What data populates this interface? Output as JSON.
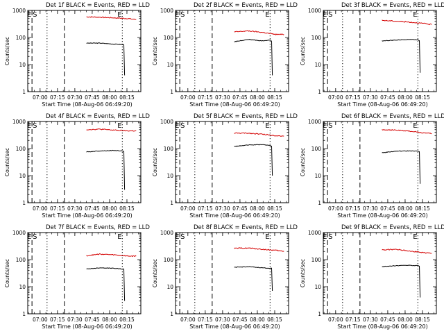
{
  "colors": {
    "events": "#000000",
    "lld": "#d40000",
    "axis": "#000000",
    "background": "#ffffff"
  },
  "common": {
    "ylabel": "Counts/sec",
    "xlabel": "Start Time (08-Aug-06 06:49:20)",
    "x_ticks": [
      "07:00",
      "07:15",
      "07:30",
      "07:45",
      "08:00",
      "08:15"
    ],
    "y_ticks": [
      "1",
      "10",
      "100",
      "1000"
    ],
    "markers": {
      "E_left": "E",
      "S_left": "S",
      "E_right": "E"
    }
  },
  "chart_data": [
    {
      "type": "line",
      "title": "Det 1f BLACK = Events, RED = LLD",
      "xlabel": "Start Time (08-Aug-06 06:49:20)",
      "ylabel": "Counts/sec",
      "ylim": [
        1,
        1000
      ],
      "yscale": "log",
      "x_range": [
        "06:49:20",
        "08:27:00"
      ],
      "dotted_lines": [
        "07:06",
        "08:11"
      ],
      "dashed_lines": [
        "06:53",
        "07:21"
      ],
      "series": [
        {
          "name": "LLD",
          "color": "red",
          "x": [
            "07:40",
            "07:52",
            "08:04",
            "08:16",
            "08:23"
          ],
          "values": [
            580,
            560,
            530,
            500,
            460
          ]
        },
        {
          "name": "Events",
          "color": "black",
          "x": [
            "07:40",
            "07:52",
            "08:04",
            "08:11",
            "08:13",
            "08:13"
          ],
          "values": [
            62,
            62,
            57,
            55,
            55,
            4
          ]
        }
      ]
    },
    {
      "type": "line",
      "title": "Det 2f BLACK = Events, RED = LLD",
      "xlabel": "Start Time (08-Aug-06 06:49:20)",
      "ylabel": "Counts/sec",
      "ylim": [
        1,
        1000
      ],
      "yscale": "log",
      "x_range": [
        "06:49:20",
        "08:27:00"
      ],
      "dotted_lines": [
        "07:06",
        "08:11"
      ],
      "dashed_lines": [
        "06:53",
        "07:21"
      ],
      "series": [
        {
          "name": "LLD",
          "color": "red",
          "x": [
            "07:40",
            "07:52",
            "08:04",
            "08:16",
            "08:23"
          ],
          "values": [
            160,
            175,
            155,
            130,
            130
          ]
        },
        {
          "name": "Events",
          "color": "black",
          "x": [
            "07:40",
            "07:52",
            "08:04",
            "08:11",
            "08:13",
            "08:13"
          ],
          "values": [
            70,
            85,
            75,
            80,
            70,
            4
          ]
        }
      ]
    },
    {
      "type": "line",
      "title": "Det 3f BLACK = Events, RED = LLD",
      "xlabel": "Start Time (08-Aug-06 06:49:20)",
      "ylabel": "Counts/sec",
      "ylim": [
        1,
        1000
      ],
      "yscale": "log",
      "x_range": [
        "06:49:20",
        "08:27:00"
      ],
      "dotted_lines": [
        "07:06",
        "08:11"
      ],
      "dashed_lines": [
        "06:53",
        "07:21"
      ],
      "series": [
        {
          "name": "LLD",
          "color": "red",
          "x": [
            "07:40",
            "07:52",
            "08:04",
            "08:16",
            "08:23"
          ],
          "values": [
            430,
            400,
            370,
            330,
            300
          ]
        },
        {
          "name": "Events",
          "color": "black",
          "x": [
            "07:40",
            "07:52",
            "08:04",
            "08:11",
            "08:13",
            "08:13"
          ],
          "values": [
            75,
            80,
            85,
            82,
            75,
            5
          ]
        }
      ]
    },
    {
      "type": "line",
      "title": "Det 4f BLACK = Events, RED = LLD",
      "xlabel": "Start Time (08-Aug-06 06:49:20)",
      "ylabel": "Counts/sec",
      "ylim": [
        1,
        1000
      ],
      "yscale": "log",
      "x_range": [
        "06:49:20",
        "08:27:00"
      ],
      "dotted_lines": [
        "07:06",
        "08:11"
      ],
      "dashed_lines": [
        "06:53",
        "07:21"
      ],
      "series": [
        {
          "name": "LLD",
          "color": "red",
          "x": [
            "07:40",
            "07:52",
            "08:04",
            "08:16",
            "08:23"
          ],
          "values": [
            500,
            520,
            480,
            450,
            450
          ]
        },
        {
          "name": "Events",
          "color": "black",
          "x": [
            "07:40",
            "07:52",
            "08:04",
            "08:11",
            "08:13",
            "08:13"
          ],
          "values": [
            75,
            82,
            85,
            82,
            78,
            3
          ]
        }
      ]
    },
    {
      "type": "line",
      "title": "Det 5f BLACK = Events, RED = LLD",
      "xlabel": "Start Time (08-Aug-06 06:49:20)",
      "ylabel": "Counts/sec",
      "ylim": [
        1,
        1000
      ],
      "yscale": "log",
      "x_range": [
        "06:49:20",
        "08:27:00"
      ],
      "dotted_lines": [
        "07:06",
        "08:11"
      ],
      "dashed_lines": [
        "06:53",
        "07:21"
      ],
      "series": [
        {
          "name": "LLD",
          "color": "red",
          "x": [
            "07:40",
            "07:52",
            "08:04",
            "08:16",
            "08:23"
          ],
          "values": [
            370,
            370,
            340,
            300,
            290
          ]
        },
        {
          "name": "Events",
          "color": "black",
          "x": [
            "07:40",
            "07:52",
            "08:04",
            "08:11",
            "08:13",
            "08:13"
          ],
          "values": [
            120,
            135,
            140,
            130,
            120,
            10
          ]
        }
      ]
    },
    {
      "type": "line",
      "title": "Det 6f BLACK = Events, RED = LLD",
      "xlabel": "Start Time (08-Aug-06 06:49:20)",
      "ylabel": "Counts/sec",
      "ylim": [
        1,
        1000
      ],
      "yscale": "log",
      "x_range": [
        "06:49:20",
        "08:27:00"
      ],
      "dotted_lines": [
        "07:06",
        "08:11"
      ],
      "dashed_lines": [
        "06:53",
        "07:21"
      ],
      "series": [
        {
          "name": "LLD",
          "color": "red",
          "x": [
            "07:40",
            "07:52",
            "08:04",
            "08:16",
            "08:23"
          ],
          "values": [
            500,
            480,
            440,
            380,
            360
          ]
        },
        {
          "name": "Events",
          "color": "black",
          "x": [
            "07:40",
            "07:52",
            "08:04",
            "08:11",
            "08:13",
            "08:13"
          ],
          "values": [
            70,
            80,
            82,
            80,
            75,
            5
          ]
        }
      ]
    },
    {
      "type": "line",
      "title": "Det 7f BLACK = Events, RED = LLD",
      "xlabel": "Start Time (08-Aug-06 06:49:20)",
      "ylabel": "Counts/sec",
      "ylim": [
        1,
        1000
      ],
      "yscale": "log",
      "x_range": [
        "06:49:20",
        "08:27:00"
      ],
      "dotted_lines": [
        "07:06",
        "08:11"
      ],
      "dashed_lines": [
        "06:53",
        "07:21"
      ],
      "series": [
        {
          "name": "LLD",
          "color": "red",
          "x": [
            "07:40",
            "07:52",
            "08:04",
            "08:16",
            "08:23"
          ],
          "values": [
            140,
            160,
            150,
            135,
            135
          ]
        },
        {
          "name": "Events",
          "color": "black",
          "x": [
            "07:40",
            "07:52",
            "08:04",
            "08:11",
            "08:13",
            "08:13"
          ],
          "values": [
            45,
            50,
            48,
            45,
            45,
            3
          ]
        }
      ]
    },
    {
      "type": "line",
      "title": "Det 8f BLACK = Events, RED = LLD",
      "xlabel": "Start Time (08-Aug-06 06:49:20)",
      "ylabel": "Counts/sec",
      "ylim": [
        1,
        1000
      ],
      "yscale": "log",
      "x_range": [
        "06:49:20",
        "08:27:00"
      ],
      "dotted_lines": [
        "07:06",
        "08:11"
      ],
      "dashed_lines": [
        "06:53",
        "07:21"
      ],
      "series": [
        {
          "name": "LLD",
          "color": "red",
          "x": [
            "07:40",
            "07:52",
            "08:04",
            "08:16",
            "08:23"
          ],
          "values": [
            260,
            270,
            240,
            220,
            200
          ]
        },
        {
          "name": "Events",
          "color": "black",
          "x": [
            "07:40",
            "07:52",
            "08:04",
            "08:11",
            "08:13",
            "08:13"
          ],
          "values": [
            52,
            55,
            50,
            48,
            48,
            7
          ]
        }
      ]
    },
    {
      "type": "line",
      "title": "Det 9f BLACK = Events, RED = LLD",
      "xlabel": "Start Time (08-Aug-06 06:49:20)",
      "ylabel": "Counts/sec",
      "ylim": [
        1,
        1000
      ],
      "yscale": "log",
      "x_range": [
        "06:49:20",
        "08:27:00"
      ],
      "dotted_lines": [
        "07:06",
        "08:11"
      ],
      "dashed_lines": [
        "06:53",
        "07:21"
      ],
      "series": [
        {
          "name": "LLD",
          "color": "red",
          "x": [
            "07:40",
            "07:52",
            "08:04",
            "08:16",
            "08:23"
          ],
          "values": [
            230,
            240,
            210,
            180,
            170
          ]
        },
        {
          "name": "Events",
          "color": "black",
          "x": [
            "07:40",
            "07:52",
            "08:04",
            "08:11",
            "08:13",
            "08:13"
          ],
          "values": [
            55,
            60,
            62,
            60,
            55,
            4
          ]
        }
      ]
    }
  ]
}
